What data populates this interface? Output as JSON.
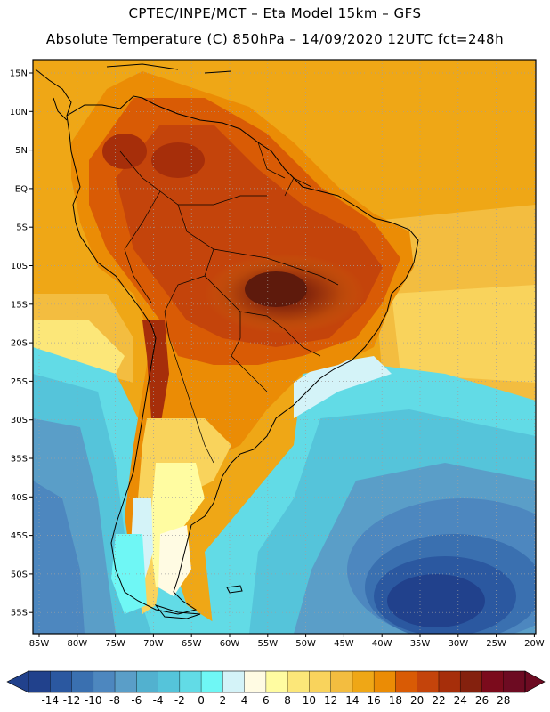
{
  "header": {
    "line1": "CPTEC/INPE/MCT –  Eta Model 15km – GFS",
    "line2": "Absolute Temperature (C) 850hPa – 14/09/2020 12UTC fct=248h"
  },
  "map": {
    "lat_ticks": [
      "15N",
      "10N",
      "5N",
      "EQ",
      "5S",
      "10S",
      "15S",
      "20S",
      "25S",
      "30S",
      "35S",
      "40S",
      "45S",
      "50S",
      "55S"
    ],
    "lon_ticks": [
      "85W",
      "80W",
      "75W",
      "70W",
      "65W",
      "60W",
      "55W",
      "50W",
      "45W",
      "40W",
      "35W",
      "30W",
      "25W",
      "20W"
    ],
    "lat_range": [
      15,
      -55
    ],
    "lon_range": [
      -85,
      -20
    ],
    "grid": true
  },
  "colorbar": {
    "labels": [
      "-14",
      "-12",
      "-10",
      "-8",
      "-6",
      "-4",
      "-2",
      "0",
      "2",
      "4",
      "6",
      "8",
      "10",
      "12",
      "14",
      "16",
      "18",
      "20",
      "22",
      "24",
      "26",
      "28"
    ],
    "colors": [
      "#21418c",
      "#2b58a0",
      "#3a70b0",
      "#4d87bf",
      "#5a9ec8",
      "#52b1cf",
      "#55c4da",
      "#62dbe6",
      "#6ff7f5",
      "#d4f3f8",
      "#fffbe3",
      "#fffca1",
      "#fce779",
      "#f9d35c",
      "#f3bd40",
      "#efa716",
      "#eb8c05",
      "#d95b05",
      "#c4440b",
      "#a62e0a",
      "#84210e",
      "#7b0b1c",
      "#6d0b22"
    ],
    "min_arrow_color": "#21418c",
    "max_arrow_color": "#6d0b22"
  }
}
